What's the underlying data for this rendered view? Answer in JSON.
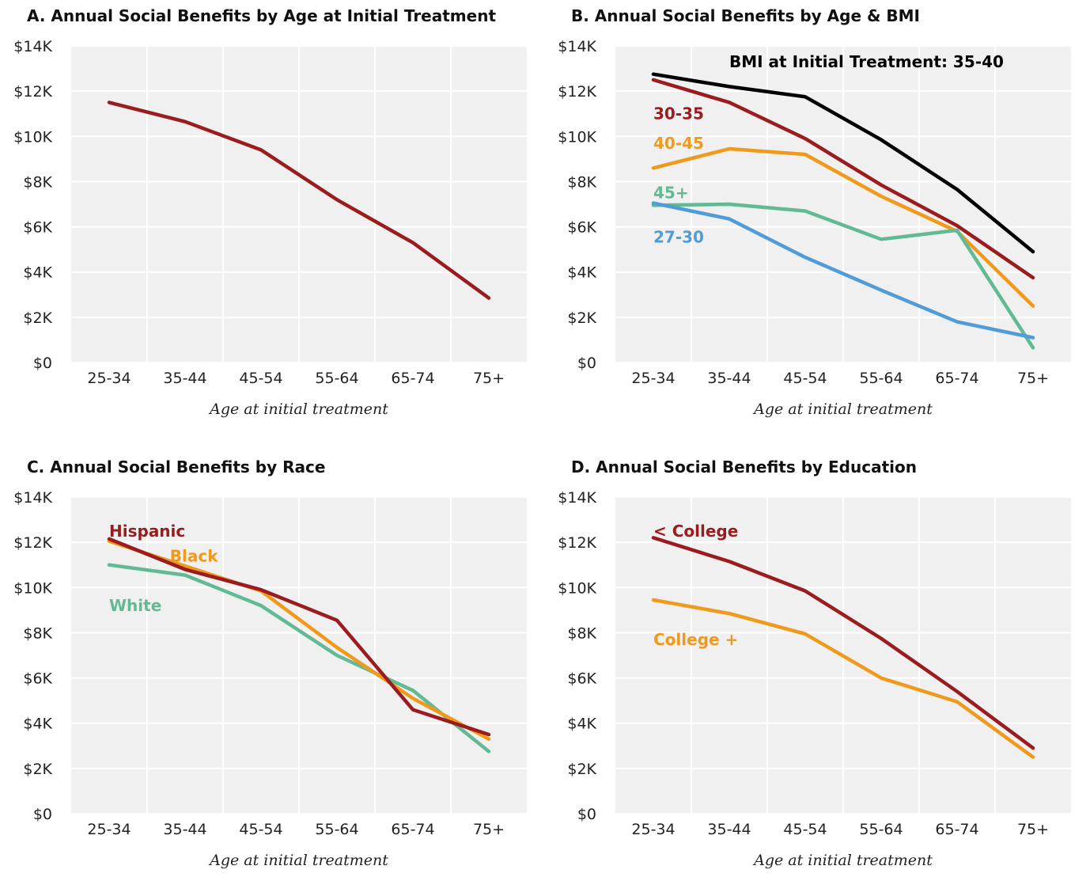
{
  "colors": {
    "background": "#f0f0f0",
    "grid": "#ffffff",
    "black": "#000000",
    "red": "#9b1c1f",
    "orange": "#f09a1d",
    "green": "#62ba94",
    "blue": "#4f9cd8"
  },
  "chart_data": [
    {
      "id": "A",
      "type": "line",
      "title": "A. Annual Social Benefits by Age at Initial Treatment",
      "xlabel": "Age at initial treatment",
      "ylabel": "",
      "categories": [
        "25-34",
        "35-44",
        "45-54",
        "55-64",
        "65-74",
        "75+"
      ],
      "yticks": [
        "$0",
        "$2K",
        "$4K",
        "$6K",
        "$8K",
        "$10K",
        "$12K",
        "$14K"
      ],
      "ylim": [
        0,
        14000
      ],
      "grid": true,
      "series": [
        {
          "color": "red",
          "values": [
            11500,
            10650,
            9400,
            7200,
            5300,
            2850
          ]
        }
      ]
    },
    {
      "id": "B",
      "type": "line",
      "title": "B. Annual Social Benefits by Age & BMI",
      "xlabel": "Age at initial treatment",
      "ylabel": "",
      "categories": [
        "25-34",
        "35-44",
        "45-54",
        "55-64",
        "65-74",
        "75+"
      ],
      "yticks": [
        "$0",
        "$2K",
        "$4K",
        "$6K",
        "$8K",
        "$10K",
        "$12K",
        "$14K"
      ],
      "ylim": [
        0,
        14000
      ],
      "grid": true,
      "series": [
        {
          "name": "BMI at Initial Treatment: 35-40",
          "color": "black",
          "values": [
            12750,
            12200,
            11750,
            9850,
            7650,
            4900
          ],
          "label_at": [
            1,
            13300
          ]
        },
        {
          "name": "30-35",
          "color": "red",
          "values": [
            12500,
            11500,
            9900,
            7850,
            6050,
            3750
          ],
          "label_at": [
            0,
            11000
          ]
        },
        {
          "name": "40-45",
          "color": "orange",
          "values": [
            8600,
            9450,
            9200,
            7350,
            5800,
            2500
          ],
          "label_at": [
            0,
            9700
          ]
        },
        {
          "name": "45+",
          "color": "green",
          "values": [
            6950,
            7000,
            6700,
            5450,
            5850,
            650
          ],
          "label_at": [
            0,
            7500
          ]
        },
        {
          "name": "27-30",
          "color": "blue",
          "values": [
            7050,
            6350,
            4650,
            3200,
            1800,
            1100
          ],
          "label_at": [
            0,
            5550
          ]
        }
      ]
    },
    {
      "id": "C",
      "type": "line",
      "title": "C. Annual Social Benefits by Race",
      "xlabel": "Age at initial treatment",
      "ylabel": "",
      "categories": [
        "25-34",
        "35-44",
        "45-54",
        "55-64",
        "65-74",
        "75+"
      ],
      "yticks": [
        "$0",
        "$2K",
        "$4K",
        "$6K",
        "$8K",
        "$10K",
        "$12K",
        "$14K"
      ],
      "ylim": [
        0,
        14000
      ],
      "grid": true,
      "series": [
        {
          "name": "White",
          "color": "green",
          "values": [
            11000,
            10550,
            9200,
            7000,
            5450,
            2750
          ],
          "label_at": [
            0,
            9200
          ]
        },
        {
          "name": "Black",
          "color": "orange",
          "values": [
            12050,
            10950,
            9850,
            7350,
            5100,
            3300
          ],
          "label_at": [
            0.8,
            11400
          ]
        },
        {
          "name": "Hispanic",
          "color": "red",
          "values": [
            12150,
            10800,
            9900,
            8550,
            4600,
            3500
          ],
          "label_at": [
            0,
            12500
          ]
        }
      ]
    },
    {
      "id": "D",
      "type": "line",
      "title": "D. Annual Social Benefits by Education",
      "xlabel": "Age at initial treatment",
      "ylabel": "",
      "categories": [
        "25-34",
        "35-44",
        "45-54",
        "55-64",
        "65-74",
        "75+"
      ],
      "yticks": [
        "$0",
        "$2K",
        "$4K",
        "$6K",
        "$8K",
        "$10K",
        "$12K",
        "$14K"
      ],
      "ylim": [
        0,
        14000
      ],
      "grid": true,
      "series": [
        {
          "name": "< College",
          "color": "red",
          "values": [
            12200,
            11150,
            9850,
            7750,
            5400,
            2900
          ],
          "label_at": [
            0,
            12500
          ]
        },
        {
          "name": "College +",
          "color": "orange",
          "values": [
            9450,
            8850,
            7950,
            6000,
            4950,
            2500
          ],
          "label_at": [
            0,
            7700
          ]
        }
      ]
    }
  ]
}
